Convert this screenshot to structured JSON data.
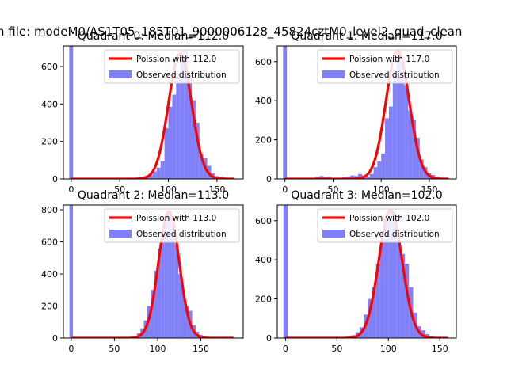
{
  "figure": {
    "suptitle": "n file: modeM0/AS1T05_185T01_9000006128_45824cztM0_level2_quad_clean"
  },
  "chart_data": [
    {
      "type": "bar",
      "title": "Quadrant 0: Median=112.0",
      "xlim": [
        -8,
        177
      ],
      "ylim": [
        0,
        710
      ],
      "xticks": [
        0,
        50,
        100,
        150
      ],
      "yticks": [
        0,
        200,
        400,
        600
      ],
      "legend_placement": "top-right",
      "series": [
        {
          "name": "Poission with 112.0",
          "kind": "line",
          "color": "#ff0000",
          "mean": 112.0,
          "peak": 668,
          "x_range": [
            0,
            168
          ]
        },
        {
          "name": "Observed distribution",
          "kind": "histogram",
          "color": "#8080f8",
          "bins": [
            [
              -2,
              2,
              710
            ],
            [
              72,
              76,
              10
            ],
            [
              76,
              80,
              18
            ],
            [
              80,
              84,
              22
            ],
            [
              84,
              88,
              40
            ],
            [
              88,
              92,
              60
            ],
            [
              92,
              96,
              95
            ],
            [
              96,
              100,
              270
            ],
            [
              100,
              104,
              385
            ],
            [
              104,
              108,
              450
            ],
            [
              108,
              112,
              560
            ],
            [
              112,
              116,
              680
            ],
            [
              116,
              120,
              690
            ],
            [
              120,
              124,
              540
            ],
            [
              124,
              128,
              420
            ],
            [
              128,
              132,
              300
            ],
            [
              132,
              136,
              130
            ],
            [
              136,
              140,
              110
            ],
            [
              140,
              144,
              70
            ],
            [
              144,
              148,
              30
            ],
            [
              148,
              152,
              15
            ],
            [
              152,
              156,
              10
            ],
            [
              156,
              160,
              8
            ],
            [
              160,
              164,
              5
            ],
            [
              164,
              168,
              3
            ]
          ]
        }
      ]
    },
    {
      "type": "bar",
      "title": "Quadrant 1: Median=117.0",
      "xlim": [
        -8,
        178
      ],
      "ylim": [
        0,
        680
      ],
      "xticks": [
        0,
        50,
        100,
        150
      ],
      "yticks": [
        0,
        200,
        400,
        600
      ],
      "legend_placement": "top-right",
      "series": [
        {
          "name": "Poission with 117.0",
          "kind": "line",
          "color": "#ff0000",
          "mean": 117.0,
          "peak": 655,
          "x_range": [
            0,
            170
          ]
        },
        {
          "name": "Observed distribution",
          "kind": "histogram",
          "color": "#8080f8",
          "bins": [
            [
              -2,
              2,
              680
            ],
            [
              28,
              32,
              5
            ],
            [
              32,
              36,
              10
            ],
            [
              36,
              40,
              15
            ],
            [
              40,
              44,
              8
            ],
            [
              44,
              48,
              10
            ],
            [
              48,
              52,
              6
            ],
            [
              52,
              56,
              3
            ],
            [
              56,
              60,
              5
            ],
            [
              60,
              64,
              10
            ],
            [
              64,
              68,
              12
            ],
            [
              68,
              72,
              18
            ],
            [
              72,
              76,
              15
            ],
            [
              76,
              80,
              25
            ],
            [
              80,
              84,
              18
            ],
            [
              84,
              88,
              12
            ],
            [
              88,
              92,
              25
            ],
            [
              92,
              96,
              60
            ],
            [
              96,
              100,
              90
            ],
            [
              100,
              104,
              130
            ],
            [
              104,
              108,
              310
            ],
            [
              108,
              112,
              370
            ],
            [
              112,
              116,
              560
            ],
            [
              116,
              120,
              660
            ],
            [
              120,
              124,
              600
            ],
            [
              124,
              128,
              480
            ],
            [
              128,
              132,
              350
            ],
            [
              132,
              136,
              300
            ],
            [
              136,
              140,
              210
            ],
            [
              140,
              144,
              100
            ],
            [
              144,
              148,
              60
            ],
            [
              148,
              152,
              30
            ],
            [
              152,
              156,
              20
            ],
            [
              156,
              160,
              10
            ],
            [
              160,
              164,
              5
            ],
            [
              164,
              168,
              3
            ]
          ]
        }
      ]
    },
    {
      "type": "bar",
      "title": "Quadrant 2: Median=113.0",
      "xlim": [
        -9,
        199
      ],
      "ylim": [
        0,
        830
      ],
      "xticks": [
        0,
        50,
        100,
        150
      ],
      "yticks": [
        0,
        200,
        400,
        600,
        800
      ],
      "legend_placement": "top-right",
      "series": [
        {
          "name": "Poission with 113.0",
          "kind": "line",
          "color": "#ff0000",
          "mean": 113.0,
          "peak": 790,
          "x_range": [
            0,
            188
          ]
        },
        {
          "name": "Observed distribution",
          "kind": "histogram",
          "color": "#8080f8",
          "bins": [
            [
              -2,
              2,
              830
            ],
            [
              72,
              76,
              10
            ],
            [
              76,
              80,
              30
            ],
            [
              80,
              84,
              60
            ],
            [
              84,
              88,
              110
            ],
            [
              88,
              92,
              200
            ],
            [
              92,
              96,
              300
            ],
            [
              96,
              100,
              420
            ],
            [
              100,
              104,
              560
            ],
            [
              104,
              108,
              650
            ],
            [
              108,
              112,
              760
            ],
            [
              112,
              116,
              790
            ],
            [
              116,
              120,
              700
            ],
            [
              120,
              124,
              580
            ],
            [
              124,
              128,
              400
            ],
            [
              128,
              132,
              300
            ],
            [
              132,
              136,
              200
            ],
            [
              136,
              140,
              170
            ],
            [
              140,
              144,
              80
            ],
            [
              144,
              148,
              40
            ],
            [
              148,
              152,
              20
            ],
            [
              152,
              156,
              10
            ],
            [
              156,
              160,
              5
            ],
            [
              160,
              164,
              3
            ]
          ]
        }
      ]
    },
    {
      "type": "bar",
      "title": "Quadrant 3: Median=102.0",
      "xlim": [
        -8,
        166
      ],
      "ylim": [
        0,
        680
      ],
      "xticks": [
        0,
        50,
        100,
        150
      ],
      "yticks": [
        0,
        200,
        400,
        600
      ],
      "legend_placement": "top-right",
      "series": [
        {
          "name": "Poission with 102.0",
          "kind": "line",
          "color": "#ff0000",
          "mean": 102.0,
          "peak": 655,
          "x_range": [
            0,
            158
          ]
        },
        {
          "name": "Observed distribution",
          "kind": "histogram",
          "color": "#8080f8",
          "bins": [
            [
              -2,
              2,
              680
            ],
            [
              60,
              64,
              8
            ],
            [
              64,
              68,
              15
            ],
            [
              68,
              72,
              30
            ],
            [
              72,
              76,
              55
            ],
            [
              76,
              80,
              120
            ],
            [
              80,
              84,
              200
            ],
            [
              84,
              88,
              260
            ],
            [
              88,
              92,
              380
            ],
            [
              92,
              96,
              500
            ],
            [
              96,
              100,
              600
            ],
            [
              100,
              104,
              650
            ],
            [
              104,
              108,
              640
            ],
            [
              108,
              112,
              500
            ],
            [
              112,
              116,
              430
            ],
            [
              116,
              120,
              380
            ],
            [
              120,
              124,
              260
            ],
            [
              124,
              128,
              130
            ],
            [
              128,
              132,
              60
            ],
            [
              132,
              136,
              40
            ],
            [
              136,
              140,
              20
            ],
            [
              140,
              144,
              10
            ],
            [
              144,
              148,
              5
            ],
            [
              148,
              152,
              3
            ]
          ]
        }
      ]
    }
  ]
}
